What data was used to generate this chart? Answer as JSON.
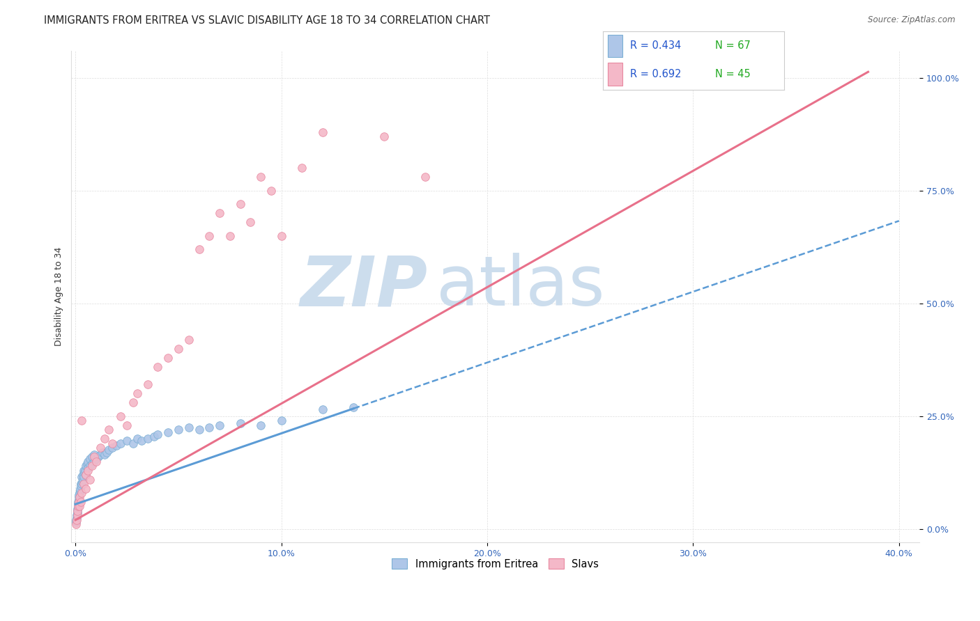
{
  "title": "IMMIGRANTS FROM ERITREA VS SLAVIC DISABILITY AGE 18 TO 34 CORRELATION CHART",
  "source": "Source: ZipAtlas.com",
  "xlabel_ticks": [
    "0.0%",
    "10.0%",
    "20.0%",
    "30.0%",
    "40.0%"
  ],
  "xlabel_tick_vals": [
    0.0,
    0.1,
    0.2,
    0.3,
    0.4
  ],
  "ylabel_ticks": [
    "0.0%",
    "25.0%",
    "50.0%",
    "75.0%",
    "100.0%"
  ],
  "ylabel_tick_vals": [
    0.0,
    0.25,
    0.5,
    0.75,
    1.0
  ],
  "xmin": -0.002,
  "xmax": 0.41,
  "ymin": -0.03,
  "ymax": 1.06,
  "ylabel": "Disability Age 18 to 34",
  "series1_label": "Immigrants from Eritrea",
  "series1_R": "0.434",
  "series1_N": "67",
  "series1_dot_color": "#aec6e8",
  "series1_edge_color": "#7bafd4",
  "series1_line_color": "#5b9bd5",
  "series2_label": "Slavs",
  "series2_R": "0.692",
  "series2_N": "45",
  "series2_dot_color": "#f4b8c8",
  "series2_edge_color": "#e888a0",
  "series2_line_color": "#e8708a",
  "legend_R_color": "#2255cc",
  "legend_N_color": "#22aa22",
  "watermark_zip": "ZIP",
  "watermark_atlas": "atlas",
  "watermark_color": "#ccdded",
  "background_color": "#ffffff",
  "grid_color": "#dddddd",
  "title_fontsize": 10.5,
  "axis_label_fontsize": 9,
  "tick_fontsize": 9,
  "legend_fontsize": 10.5,
  "s1_x": [
    0.0002,
    0.0004,
    0.0006,
    0.0007,
    0.0008,
    0.0009,
    0.001,
    0.0012,
    0.0013,
    0.0014,
    0.0015,
    0.0016,
    0.0017,
    0.0018,
    0.002,
    0.0022,
    0.0024,
    0.0025,
    0.0027,
    0.003,
    0.003,
    0.0032,
    0.0035,
    0.0037,
    0.004,
    0.004,
    0.0042,
    0.0045,
    0.005,
    0.005,
    0.0055,
    0.006,
    0.006,
    0.007,
    0.007,
    0.008,
    0.008,
    0.009,
    0.009,
    0.01,
    0.011,
    0.012,
    0.013,
    0.014,
    0.015,
    0.016,
    0.018,
    0.02,
    0.022,
    0.025,
    0.028,
    0.03,
    0.032,
    0.035,
    0.038,
    0.04,
    0.045,
    0.05,
    0.055,
    0.06,
    0.065,
    0.07,
    0.08,
    0.09,
    0.1,
    0.12,
    0.135
  ],
  "s1_y": [
    0.015,
    0.02,
    0.025,
    0.03,
    0.04,
    0.035,
    0.045,
    0.05,
    0.055,
    0.06,
    0.065,
    0.07,
    0.075,
    0.06,
    0.08,
    0.085,
    0.09,
    0.1,
    0.095,
    0.1,
    0.115,
    0.105,
    0.11,
    0.12,
    0.115,
    0.13,
    0.125,
    0.13,
    0.12,
    0.14,
    0.145,
    0.135,
    0.15,
    0.14,
    0.155,
    0.145,
    0.16,
    0.15,
    0.165,
    0.155,
    0.16,
    0.165,
    0.17,
    0.165,
    0.17,
    0.175,
    0.18,
    0.185,
    0.19,
    0.195,
    0.19,
    0.2,
    0.195,
    0.2,
    0.205,
    0.21,
    0.215,
    0.22,
    0.225,
    0.22,
    0.225,
    0.23,
    0.235,
    0.23,
    0.24,
    0.265,
    0.27
  ],
  "s2_x": [
    0.0002,
    0.0005,
    0.0008,
    0.001,
    0.0012,
    0.0015,
    0.0018,
    0.002,
    0.0025,
    0.003,
    0.003,
    0.004,
    0.005,
    0.005,
    0.006,
    0.007,
    0.008,
    0.009,
    0.01,
    0.012,
    0.014,
    0.016,
    0.018,
    0.022,
    0.025,
    0.028,
    0.03,
    0.035,
    0.04,
    0.045,
    0.05,
    0.055,
    0.06,
    0.065,
    0.07,
    0.075,
    0.08,
    0.085,
    0.09,
    0.095,
    0.1,
    0.11,
    0.12,
    0.15,
    0.17
  ],
  "s2_y": [
    0.01,
    0.02,
    0.03,
    0.04,
    0.05,
    0.06,
    0.05,
    0.07,
    0.06,
    0.08,
    0.24,
    0.1,
    0.12,
    0.09,
    0.13,
    0.11,
    0.14,
    0.16,
    0.15,
    0.18,
    0.2,
    0.22,
    0.19,
    0.25,
    0.23,
    0.28,
    0.3,
    0.32,
    0.36,
    0.38,
    0.4,
    0.42,
    0.62,
    0.65,
    0.7,
    0.65,
    0.72,
    0.68,
    0.78,
    0.75,
    0.65,
    0.8,
    0.88,
    0.87,
    0.78
  ],
  "s1_line_x0": 0.0,
  "s1_line_x_solid_end": 0.135,
  "s1_line_xmax": 0.4,
  "s1_line_y0": 0.055,
  "s1_line_slope": 1.57,
  "s2_line_x0": 0.0,
  "s2_line_xmax": 0.385,
  "s2_line_y0": 0.02,
  "s2_line_slope": 2.58
}
